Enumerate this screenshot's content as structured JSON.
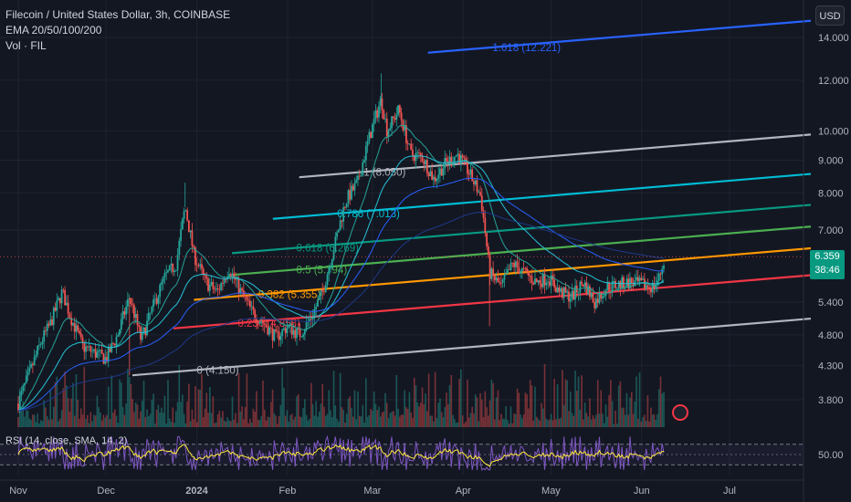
{
  "legend": {
    "title": "Filecoin / United States Dollar, 3h, COINBASE",
    "ema": "EMA 20/50/100/200",
    "vol": "Vol · FIL"
  },
  "currency": "USD",
  "last_price": {
    "value": "6.359",
    "countdown": "38:46"
  },
  "rsi_label": "RSI (14, close, SMA, 14, 2)",
  "colors": {
    "background": "#131722",
    "up": "#26a69a",
    "down": "#ef5350",
    "ema_blue": "#2962ff",
    "ema_teal": "#26c6da",
    "gray": "#b2b5be"
  },
  "chart_data": {
    "type": "candlestick",
    "price_axis_ticks": [
      {
        "label": "14.000",
        "v": 14.0
      },
      {
        "label": "12.000",
        "v": 12.0
      },
      {
        "label": "10.000",
        "v": 10.0
      },
      {
        "label": "9.000",
        "v": 9.0
      },
      {
        "label": "8.000",
        "v": 8.0
      },
      {
        "label": "7.000",
        "v": 7.0
      },
      {
        "label": "5.400",
        "v": 5.4
      },
      {
        "label": "4.800",
        "v": 4.8
      },
      {
        "label": "4.300",
        "v": 4.3
      },
      {
        "label": "3.800",
        "v": 3.8
      }
    ],
    "rsi_tick": {
      "label": "50.00",
      "v": 50
    },
    "time_axis": [
      {
        "label": "Nov",
        "t": 0
      },
      {
        "label": "Dec",
        "t": 30
      },
      {
        "label": "2024",
        "t": 61
      },
      {
        "label": "Feb",
        "t": 92
      },
      {
        "label": "Mar",
        "t": 121
      },
      {
        "label": "Apr",
        "t": 152
      },
      {
        "label": "May",
        "t": 182
      },
      {
        "label": "Jun",
        "t": 213
      },
      {
        "label": "Jul",
        "t": 243
      }
    ],
    "fib_channel": {
      "levels": [
        {
          "label": "0 (4.150)",
          "ratio": 0,
          "color": "#b2b5be"
        },
        {
          "label": "0.236 (4.858)",
          "ratio": 0.236,
          "color": "#f23645"
        },
        {
          "label": "0.382 (5.355)",
          "ratio": 0.382,
          "color": "#ff9800"
        },
        {
          "label": "0.5 (5.794)",
          "ratio": 0.5,
          "color": "#4caf50"
        },
        {
          "label": "0.618 (6.269)",
          "ratio": 0.618,
          "color": "#089981"
        },
        {
          "label": "0.786 (7.013)",
          "ratio": 0.786,
          "color": "#00bcd4"
        },
        {
          "label": "1 (8.050)",
          "ratio": 1,
          "color": "#b2b5be"
        },
        {
          "label": "1.618 (12.221)",
          "ratio": 1.618,
          "color": "#2962ff"
        }
      ]
    },
    "price_path": [
      {
        "t": 0,
        "v": 3.75
      },
      {
        "t": 4,
        "v": 4.2
      },
      {
        "t": 8,
        "v": 4.7
      },
      {
        "t": 11,
        "v": 5.0
      },
      {
        "t": 15,
        "v": 5.6
      },
      {
        "t": 18,
        "v": 5.1
      },
      {
        "t": 22,
        "v": 4.6
      },
      {
        "t": 26,
        "v": 4.5
      },
      {
        "t": 30,
        "v": 4.4
      },
      {
        "t": 34,
        "v": 4.8
      },
      {
        "t": 38,
        "v": 5.5
      },
      {
        "t": 42,
        "v": 4.7
      },
      {
        "t": 46,
        "v": 5.3
      },
      {
        "t": 50,
        "v": 5.9
      },
      {
        "t": 54,
        "v": 6.2
      },
      {
        "t": 57,
        "v": 7.6
      },
      {
        "t": 60,
        "v": 6.4
      },
      {
        "t": 64,
        "v": 5.8
      },
      {
        "t": 68,
        "v": 5.6
      },
      {
        "t": 72,
        "v": 6.1
      },
      {
        "t": 76,
        "v": 5.6
      },
      {
        "t": 80,
        "v": 5.2
      },
      {
        "t": 84,
        "v": 5.0
      },
      {
        "t": 88,
        "v": 4.75
      },
      {
        "t": 92,
        "v": 4.95
      },
      {
        "t": 96,
        "v": 4.8
      },
      {
        "t": 100,
        "v": 5.1
      },
      {
        "t": 104,
        "v": 5.6
      },
      {
        "t": 108,
        "v": 6.6
      },
      {
        "t": 112,
        "v": 7.8
      },
      {
        "t": 116,
        "v": 8.3
      },
      {
        "t": 120,
        "v": 9.8
      },
      {
        "t": 124,
        "v": 11.2
      },
      {
        "t": 126,
        "v": 10.0
      },
      {
        "t": 130,
        "v": 10.8
      },
      {
        "t": 134,
        "v": 9.2
      },
      {
        "t": 138,
        "v": 9.1
      },
      {
        "t": 142,
        "v": 8.4
      },
      {
        "t": 146,
        "v": 8.9
      },
      {
        "t": 150,
        "v": 9.2
      },
      {
        "t": 154,
        "v": 8.6
      },
      {
        "t": 158,
        "v": 7.9
      },
      {
        "t": 161,
        "v": 6.0
      },
      {
        "t": 165,
        "v": 5.7
      },
      {
        "t": 169,
        "v": 6.2
      },
      {
        "t": 173,
        "v": 6.0
      },
      {
        "t": 177,
        "v": 5.8
      },
      {
        "t": 181,
        "v": 5.9
      },
      {
        "t": 185,
        "v": 5.6
      },
      {
        "t": 189,
        "v": 5.5
      },
      {
        "t": 193,
        "v": 5.8
      },
      {
        "t": 197,
        "v": 5.4
      },
      {
        "t": 201,
        "v": 5.7
      },
      {
        "t": 205,
        "v": 5.75
      },
      {
        "t": 209,
        "v": 5.8
      },
      {
        "t": 213,
        "v": 5.75
      },
      {
        "t": 217,
        "v": 5.7
      },
      {
        "t": 219,
        "v": 5.9
      },
      {
        "t": 221,
        "v": 6.36
      }
    ]
  }
}
